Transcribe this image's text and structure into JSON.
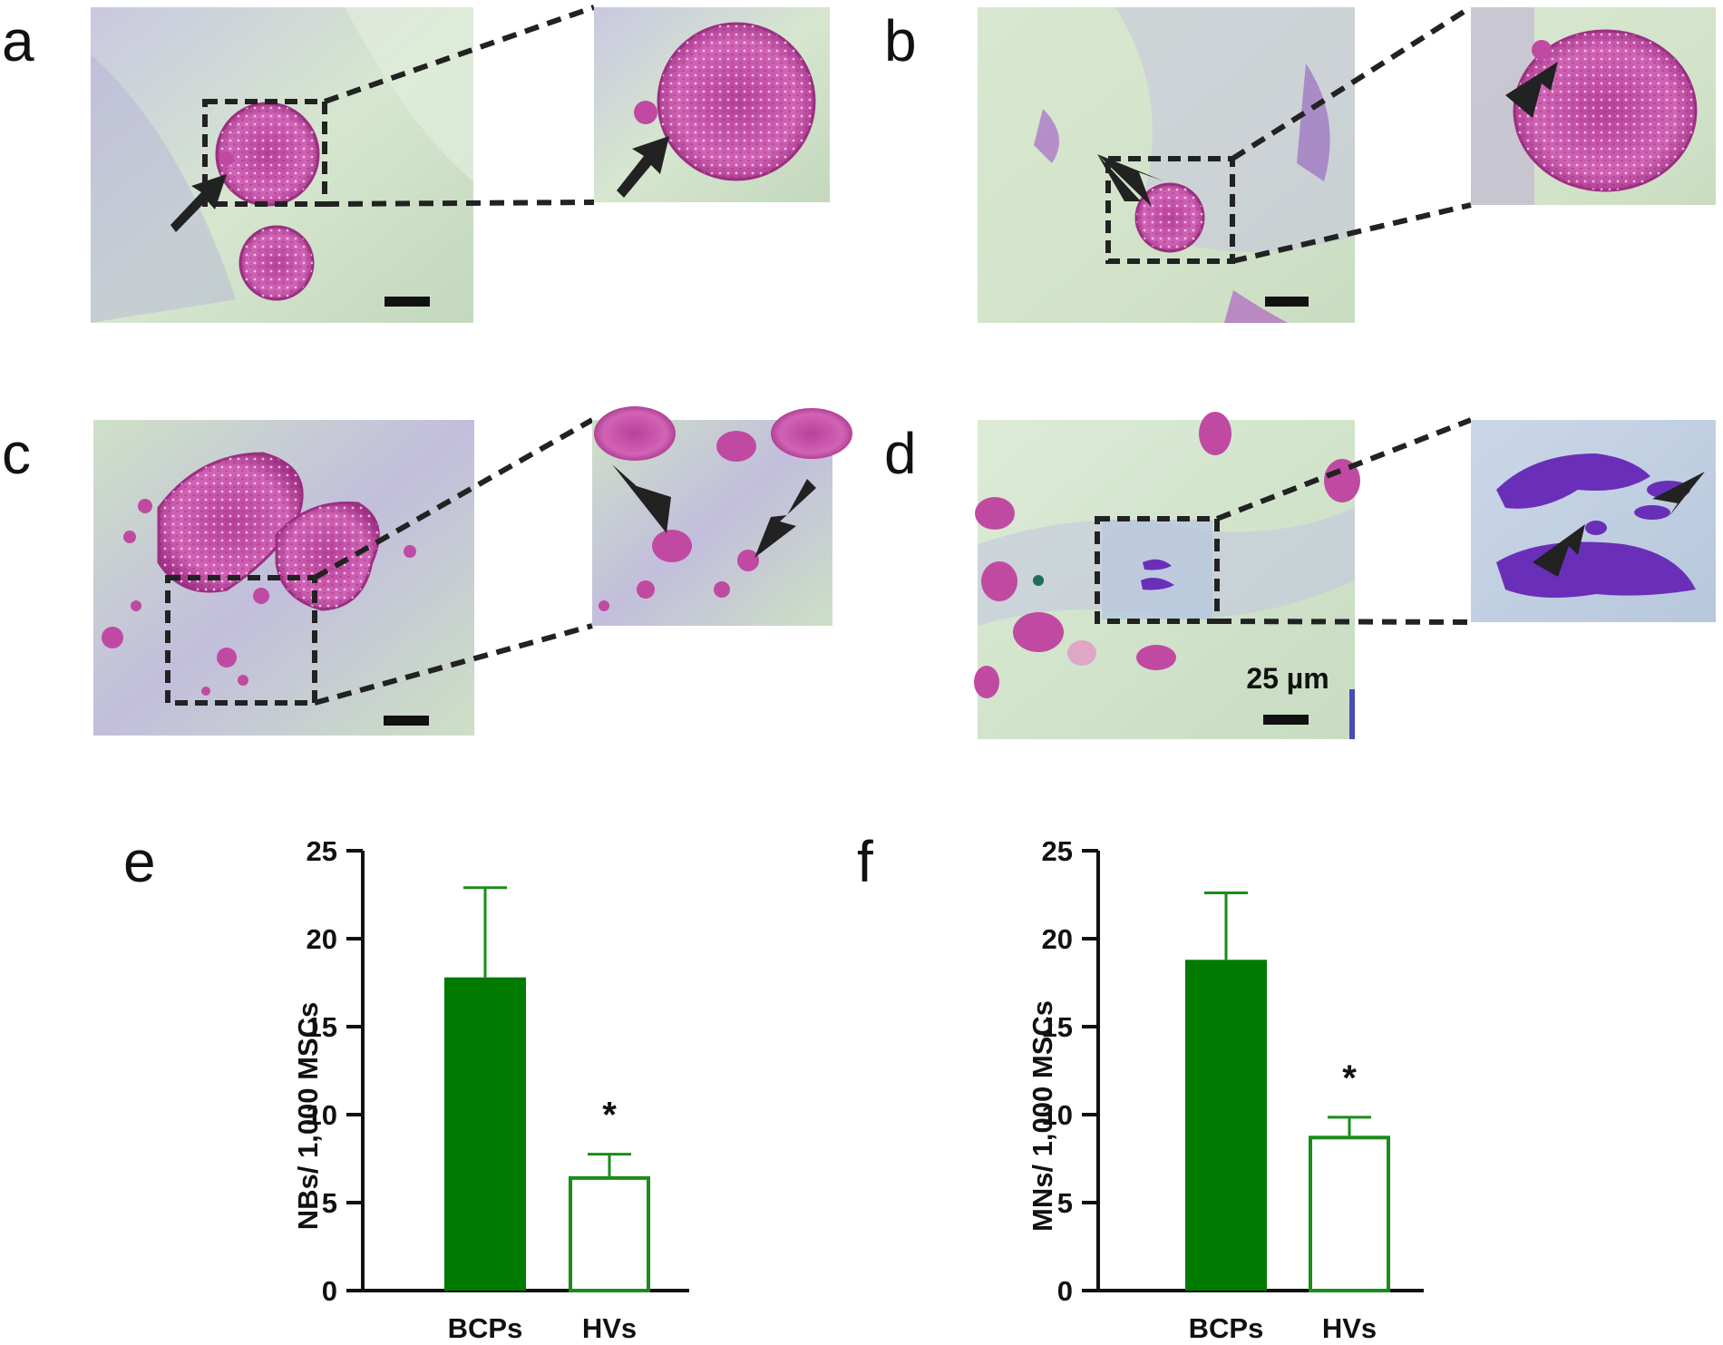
{
  "figure": {
    "panel_letters": [
      "a",
      "b",
      "c",
      "d",
      "e",
      "f"
    ],
    "scale_bar_label": "25 µm"
  },
  "colors": {
    "bar_fill": "#007a00",
    "bar_stroke": "#1a8c1a",
    "hv_fill": "#ffffff",
    "nucleus": "#c94fa8",
    "nucleus_dark": "#a83a8a",
    "bg_green": "#cfe2c6",
    "bg_violet": "#b9b3d6",
    "mitosis": "#6a2fb8"
  },
  "chart_data": [
    {
      "panel": "e",
      "type": "bar",
      "categories": [
        "BCPs",
        "HVs"
      ],
      "values": [
        17.8,
        6.5
      ],
      "errors": [
        5.1,
        1.25
      ],
      "fills": [
        "filled",
        "open"
      ],
      "significance": [
        "",
        "*"
      ],
      "ylabel": "NBs/ 1,000 MSCs",
      "xlabel": "",
      "ylim": [
        0,
        25
      ],
      "yticks": [
        0,
        5,
        10,
        15,
        20,
        25
      ],
      "ytick_labels": [
        "0",
        "5",
        "10",
        "15",
        "20",
        "25"
      ]
    },
    {
      "panel": "f",
      "type": "bar",
      "categories": [
        "BCPs",
        "HVs"
      ],
      "values": [
        18.8,
        8.8
      ],
      "errors": [
        3.8,
        1.05
      ],
      "fills": [
        "filled",
        "open"
      ],
      "significance": [
        "",
        "*"
      ],
      "ylabel": "MNs/ 1,000 MSCs",
      "xlabel": "",
      "ylim": [
        0,
        25
      ],
      "yticks": [
        0,
        5,
        10,
        15,
        20,
        25
      ],
      "ytick_labels": [
        "0",
        "5",
        "10",
        "15",
        "20",
        "25"
      ]
    }
  ]
}
